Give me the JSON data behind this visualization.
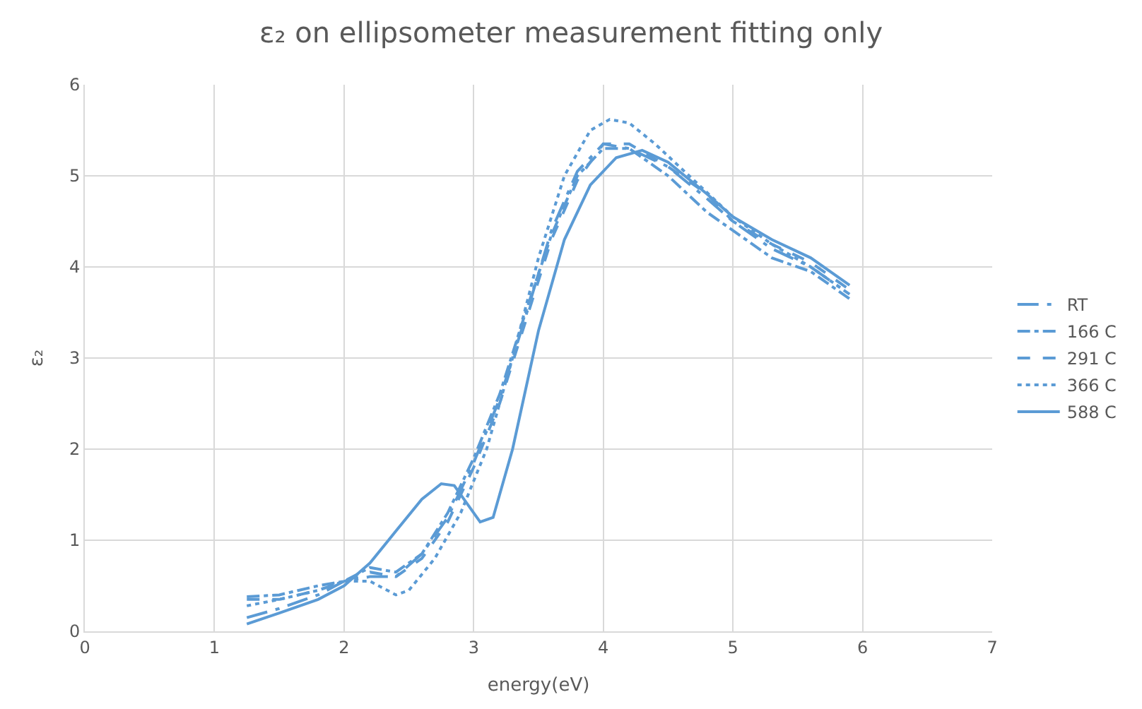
{
  "chart_data": {
    "type": "line",
    "title": "ε₂ on ellipsometer measurement fitting only",
    "xlabel": "energy(eV)",
    "ylabel": "ε₂",
    "xlim": [
      0,
      7
    ],
    "xticks": [
      0,
      1,
      2,
      3,
      4,
      5,
      6,
      7
    ],
    "ylim": [
      0,
      6
    ],
    "yticks": [
      0,
      1,
      2,
      3,
      4,
      5,
      6
    ],
    "grid": true,
    "legend": "right",
    "marker": "none",
    "series": [
      {
        "name": "RT",
        "color": "#5b9bd5",
        "line_style": "longdashdot",
        "x": [
          1.25,
          1.5,
          1.8,
          2.0,
          2.2,
          2.4,
          2.6,
          2.8,
          3.0,
          3.2,
          3.4,
          3.6,
          3.8,
          4.0,
          4.2,
          4.5,
          4.8,
          5.0,
          5.3,
          5.6,
          5.9
        ],
        "values": [
          0.15,
          0.25,
          0.4,
          0.55,
          0.6,
          0.6,
          0.85,
          1.25,
          1.85,
          2.55,
          3.45,
          4.4,
          5.05,
          5.35,
          5.3,
          5.1,
          4.75,
          4.5,
          4.2,
          4.0,
          3.7
        ]
      },
      {
        "name": "166 C",
        "color": "#5b9bd5",
        "line_style": "dashdot",
        "x": [
          1.25,
          1.5,
          1.8,
          2.0,
          2.2,
          2.4,
          2.6,
          2.8,
          3.0,
          3.2,
          3.4,
          3.6,
          3.8,
          4.0,
          4.2,
          4.5,
          4.8,
          5.0,
          5.3,
          5.6,
          5.9
        ],
        "values": [
          0.38,
          0.4,
          0.5,
          0.55,
          0.7,
          0.65,
          0.85,
          1.3,
          1.9,
          2.6,
          3.5,
          4.35,
          5.0,
          5.3,
          5.3,
          5.0,
          4.6,
          4.4,
          4.1,
          3.95,
          3.65
        ]
      },
      {
        "name": "291 C",
        "color": "#5b9bd5",
        "line_style": "dashed",
        "x": [
          1.25,
          1.5,
          1.8,
          2.0,
          2.2,
          2.4,
          2.6,
          2.8,
          3.0,
          3.2,
          3.4,
          3.6,
          3.8,
          4.0,
          4.2,
          4.5,
          4.8,
          5.0,
          5.3,
          5.6,
          5.9
        ],
        "values": [
          0.35,
          0.35,
          0.45,
          0.55,
          0.65,
          0.6,
          0.8,
          1.2,
          1.8,
          2.5,
          3.4,
          4.3,
          4.95,
          5.35,
          5.35,
          5.1,
          4.8,
          4.5,
          4.25,
          4.05,
          3.75
        ]
      },
      {
        "name": "366 C",
        "color": "#5b9bd5",
        "line_style": "dotted",
        "x": [
          1.25,
          1.5,
          1.8,
          2.0,
          2.2,
          2.4,
          2.5,
          2.7,
          2.9,
          3.1,
          3.3,
          3.5,
          3.7,
          3.9,
          4.05,
          4.2,
          4.4,
          4.7,
          5.0,
          5.3,
          5.6,
          5.9
        ],
        "values": [
          0.28,
          0.35,
          0.45,
          0.55,
          0.55,
          0.4,
          0.45,
          0.8,
          1.3,
          2.0,
          3.0,
          4.1,
          5.0,
          5.5,
          5.62,
          5.58,
          5.35,
          4.95,
          4.55,
          4.25,
          4.0,
          3.7
        ]
      },
      {
        "name": "588 C",
        "color": "#5b9bd5",
        "line_style": "solid",
        "x": [
          1.25,
          1.5,
          1.8,
          2.0,
          2.2,
          2.4,
          2.6,
          2.75,
          2.85,
          2.95,
          3.05,
          3.15,
          3.3,
          3.5,
          3.7,
          3.9,
          4.1,
          4.3,
          4.5,
          4.8,
          5.0,
          5.3,
          5.6,
          5.9
        ],
        "values": [
          0.08,
          0.2,
          0.35,
          0.5,
          0.75,
          1.1,
          1.45,
          1.62,
          1.6,
          1.4,
          1.2,
          1.25,
          2.0,
          3.3,
          4.3,
          4.9,
          5.2,
          5.28,
          5.15,
          4.8,
          4.55,
          4.3,
          4.1,
          3.8
        ]
      }
    ]
  }
}
